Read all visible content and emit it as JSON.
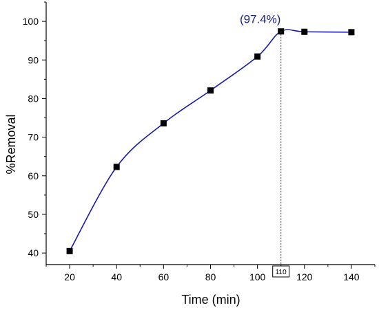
{
  "chart_data": {
    "type": "scatter",
    "title": "",
    "xlabel": "Time (min)",
    "ylabel": "%Removal",
    "xlim": [
      10,
      150
    ],
    "ylim": [
      37,
      105
    ],
    "xticks": [
      20,
      40,
      60,
      80,
      100,
      120,
      140
    ],
    "yticks": [
      40,
      50,
      60,
      70,
      80,
      90,
      100
    ],
    "grid": false,
    "legend": "none",
    "series": [
      {
        "x": [
          20,
          40,
          60,
          80,
          100,
          110,
          120,
          140
        ],
        "y": [
          40.5,
          62.3,
          73.6,
          82.1,
          90.9,
          97.4,
          97.3,
          97.2
        ],
        "marker": "square",
        "color": "#000000",
        "fit_line_color": "#1a1aa6"
      }
    ],
    "annotation": {
      "x": 110,
      "text": "(97.4%)",
      "boxed_x_label": "110",
      "color": "#1a237e"
    }
  }
}
